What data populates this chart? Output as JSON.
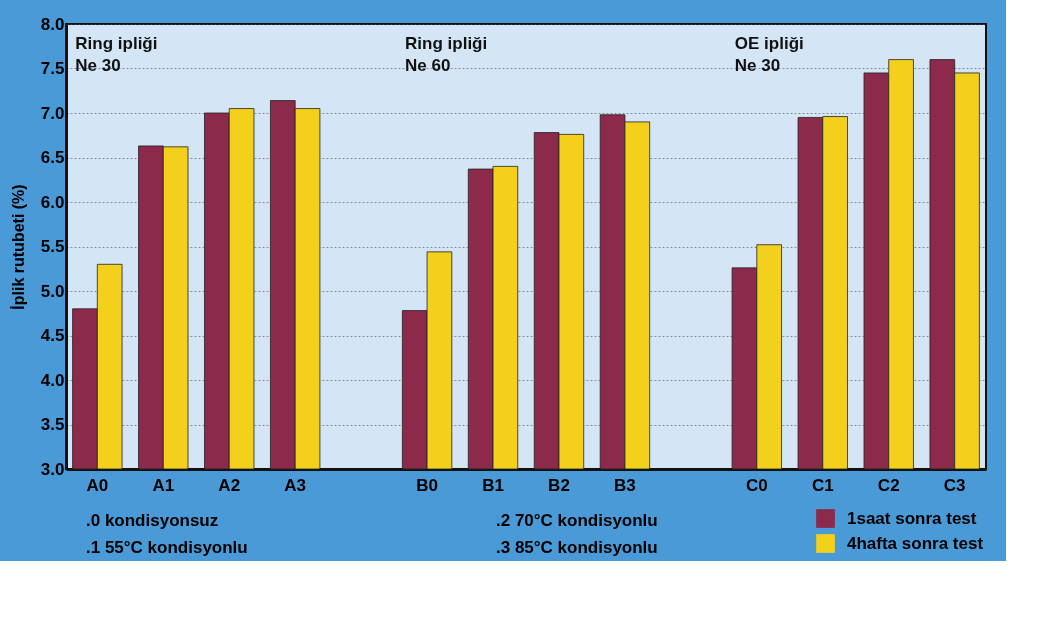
{
  "chart_data": {
    "type": "bar",
    "ylabel": "İplik rutubeti (%)",
    "categories": [
      "A0",
      "A1",
      "A2",
      "A3",
      null,
      "B0",
      "B1",
      "B2",
      "B3",
      null,
      "C0",
      "C1",
      "C2",
      "C3"
    ],
    "series": [
      {
        "name": "1saat sonra test",
        "color": "#8b2a4a",
        "values": [
          4.8,
          6.63,
          7.0,
          7.14,
          null,
          4.78,
          6.37,
          6.78,
          6.98,
          null,
          5.26,
          6.95,
          7.45,
          7.6
        ]
      },
      {
        "name": "4hafta sonra test",
        "color": "#f2d01c",
        "values": [
          5.3,
          6.62,
          7.05,
          7.05,
          null,
          5.44,
          6.4,
          6.76,
          6.9,
          null,
          5.52,
          6.96,
          7.6,
          7.45
        ]
      }
    ],
    "ylim": [
      3.0,
      8.0
    ],
    "yticks": [
      {
        "value": 3,
        "label": "3.0"
      },
      3.5,
      {
        "value": 4,
        "label": "4.0"
      },
      4.5,
      {
        "value": 5,
        "label": "5.0"
      },
      5.5,
      {
        "value": 6,
        "label": "6.0"
      },
      6.5,
      {
        "value": 7,
        "label": "7.0"
      },
      7.5,
      {
        "value": 8,
        "label": "8.0"
      }
    ],
    "grid": "y",
    "legend": "bottom right",
    "annotations": [
      "Ring ipliği\nNe 30",
      "Ring ipliği\nNe 60",
      "OE ipliği\nNe 30",
      ".0 kondisyonsuz",
      ".1 55°C kondisyonlu",
      ".2 70°C kondisyonlu",
      ".3 85°C kondisyonlu"
    ]
  }
}
